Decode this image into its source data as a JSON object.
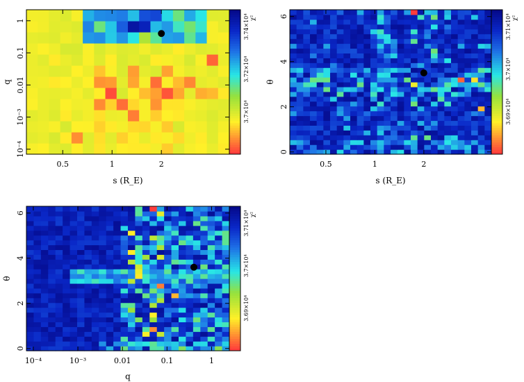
{
  "chart_data": [
    {
      "type": "heatmap",
      "id": "panel-1",
      "title": "",
      "xlabel": "s (R_E)",
      "ylabel": "q",
      "x_scale": "log",
      "y_scale": "log",
      "xlim": [
        0.3,
        5.2
      ],
      "ylim": [
        7e-05,
        2.2
      ],
      "x_ticks": [
        {
          "v": 0.5,
          "label": "0.5"
        },
        {
          "v": 1,
          "label": "1"
        },
        {
          "v": 2,
          "label": "2"
        }
      ],
      "y_ticks": [
        {
          "v": 0.0001,
          "label": "10⁻⁴"
        },
        {
          "v": 0.001,
          "label": "10⁻³"
        },
        {
          "v": 0.01,
          "label": "0.01"
        },
        {
          "v": 0.1,
          "label": "0.1"
        },
        {
          "v": 1,
          "label": "1"
        }
      ],
      "best_fit": {
        "x": 2.0,
        "y": 0.4
      },
      "colorbar": {
        "label": "χ²",
        "ticks": [
          "3.7×10⁴",
          "3.72×10⁴",
          "3.74×10⁴"
        ],
        "min": 3.68,
        "max": 3.75
      }
    },
    {
      "type": "heatmap",
      "id": "panel-2",
      "title": "",
      "xlabel": "s (R_E)",
      "ylabel": "θ",
      "x_scale": "log",
      "y_scale": "linear",
      "xlim": [
        0.3,
        5.2
      ],
      "ylim": [
        -0.1,
        6.3
      ],
      "x_ticks": [
        {
          "v": 0.5,
          "label": "0.5"
        },
        {
          "v": 1,
          "label": "1"
        },
        {
          "v": 2,
          "label": "2"
        }
      ],
      "y_ticks": [
        {
          "v": 0,
          "label": "0"
        },
        {
          "v": 2,
          "label": "2"
        },
        {
          "v": 4,
          "label": "4"
        },
        {
          "v": 6,
          "label": "6"
        }
      ],
      "best_fit": {
        "x": 2.0,
        "y": 3.5
      },
      "colorbar": {
        "label": "χ²",
        "ticks": [
          "3.69×10⁴",
          "3.7×10⁴",
          "3.71×10⁴"
        ],
        "min": 3.685,
        "max": 3.715
      }
    },
    {
      "type": "heatmap",
      "id": "panel-3",
      "title": "",
      "xlabel": "q",
      "ylabel": "θ",
      "x_scale": "log",
      "y_scale": "linear",
      "xlim": [
        7e-05,
        2.5
      ],
      "ylim": [
        -0.1,
        6.3
      ],
      "x_ticks": [
        {
          "v": 0.0001,
          "label": "10⁻⁴"
        },
        {
          "v": 0.001,
          "label": "10⁻³"
        },
        {
          "v": 0.01,
          "label": "0.01"
        },
        {
          "v": 0.1,
          "label": "0.1"
        },
        {
          "v": 1,
          "label": "1"
        }
      ],
      "y_ticks": [
        {
          "v": 0,
          "label": "0"
        },
        {
          "v": 2,
          "label": "2"
        },
        {
          "v": 4,
          "label": "4"
        },
        {
          "v": 6,
          "label": "6"
        }
      ],
      "best_fit": {
        "x": 0.4,
        "y": 3.6
      },
      "colorbar": {
        "label": "χ²",
        "ticks": [
          "3.69×10⁴",
          "3.7×10⁴",
          "3.71×10⁴"
        ],
        "min": 3.685,
        "max": 3.715
      }
    }
  ]
}
